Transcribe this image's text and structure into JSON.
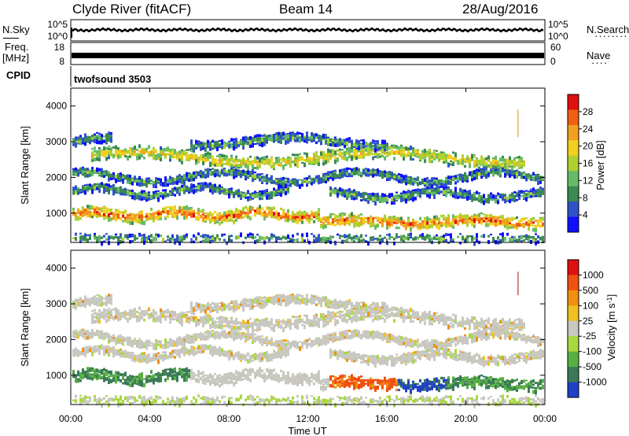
{
  "header": {
    "station": "Clyde River (fitACF)",
    "beam": "Beam 14",
    "date": "28/Aug/2016"
  },
  "noise_panel": {
    "left_label": "N.Sky",
    "right_label": "N.Search",
    "y_ticks": [
      "10^5",
      "10^0"
    ]
  },
  "freq_panel": {
    "left_label_line1": "Freq.",
    "left_label_line2": "[MHz]",
    "left_ticks": [
      "18",
      "8"
    ],
    "right_label": "Nave",
    "right_ticks": [
      "60",
      "0"
    ]
  },
  "cpid": {
    "label": "CPID",
    "program": "twofsound 3503"
  },
  "colors": {
    "power": [
      "#1010ff",
      "#2f52c8",
      "#3a8a52",
      "#66bb66",
      "#b0d030",
      "#f2d020",
      "#f2a020",
      "#f06010",
      "#e01010"
    ],
    "velocity": [
      "#2040c8",
      "#3a7a58",
      "#58b040",
      "#a8d840",
      "#c8c8c0",
      "#f0c020",
      "#f09010",
      "#f05010",
      "#e01010"
    ]
  },
  "chart_data": [
    {
      "type": "heatmap",
      "quantity": "power",
      "ylabel": "Slant Range [km]",
      "y_ticks": [
        1000,
        2000,
        3000,
        4000
      ],
      "ylim": [
        180,
        4500
      ],
      "x_range_hours": [
        0,
        24
      ],
      "colorbar": {
        "label": "Power [dB]",
        "ticks": [
          "4",
          "8",
          "12",
          "16",
          "20",
          "24",
          "28"
        ]
      }
    },
    {
      "type": "heatmap",
      "quantity": "velocity",
      "ylabel": "Slant Range [km]",
      "y_ticks": [
        1000,
        2000,
        3000,
        4000
      ],
      "ylim": [
        180,
        4500
      ],
      "x_range_hours": [
        0,
        24
      ],
      "colorbar": {
        "label": "Velocity [m s",
        "label_sup": "-1",
        "label_end": "]",
        "ticks": [
          "1000",
          "500",
          "100",
          "25",
          "-25",
          "-100",
          "-500",
          "-1000"
        ]
      }
    }
  ],
  "x_axis": {
    "ticks": [
      "00:00",
      "04:00",
      "08:00",
      "12:00",
      "16:00",
      "20:00",
      "00:00"
    ],
    "label": "Time UT"
  }
}
